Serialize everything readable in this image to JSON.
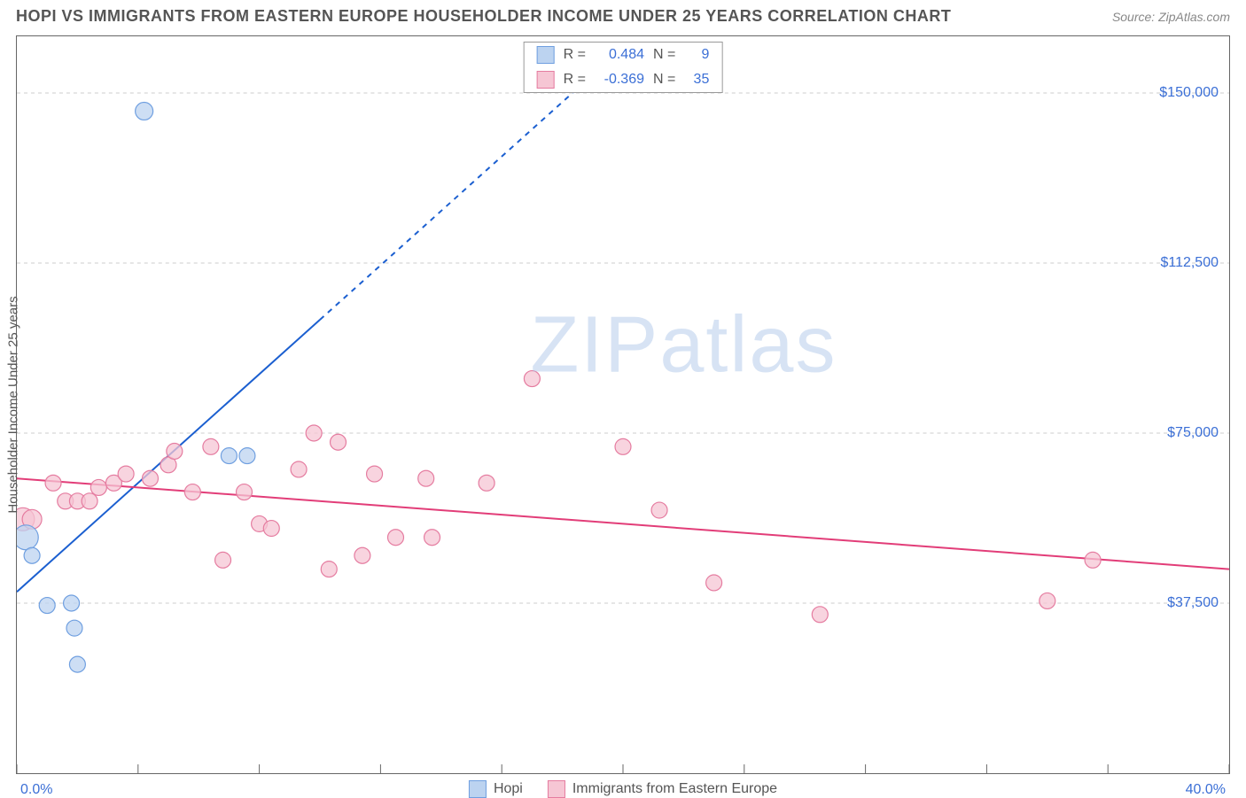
{
  "title": "HOPI VS IMMIGRANTS FROM EASTERN EUROPE HOUSEHOLDER INCOME UNDER 25 YEARS CORRELATION CHART",
  "source": "Source: ZipAtlas.com",
  "ylabel": "Householder Income Under 25 years",
  "watermark_a": "ZIP",
  "watermark_b": "atlas",
  "chart": {
    "type": "scatter",
    "xlim": [
      0,
      40
    ],
    "ylim": [
      0,
      162500
    ],
    "x_start_label": "0.0%",
    "x_end_label": "40.0%",
    "ytick_values": [
      37500,
      75000,
      112500,
      150000
    ],
    "ytick_labels": [
      "$37,500",
      "$75,000",
      "$112,500",
      "$150,000"
    ],
    "xtick_values": [
      0,
      4,
      8,
      12,
      16,
      20,
      24,
      28,
      32,
      36,
      40
    ],
    "background_color": "#ffffff",
    "grid_color": "#cccccc",
    "border_color": "#666666",
    "label_color": "#3b6fd6",
    "series": [
      {
        "name": "Hopi",
        "color_fill": "#bcd3f0",
        "color_stroke": "#6f9fe0",
        "r_value": "0.484",
        "n_value": "9",
        "trend": {
          "x1": 0,
          "y1": 40000,
          "x2": 10,
          "y2": 100000,
          "x2_dash": 20,
          "y2_dash": 160000,
          "stroke": "#1b5fd0",
          "width": 2
        },
        "points": [
          {
            "x": 0.3,
            "y": 52000,
            "r": 14
          },
          {
            "x": 0.5,
            "y": 48000,
            "r": 9
          },
          {
            "x": 1.0,
            "y": 37000,
            "r": 9
          },
          {
            "x": 1.8,
            "y": 37500,
            "r": 9
          },
          {
            "x": 1.9,
            "y": 32000,
            "r": 9
          },
          {
            "x": 2.0,
            "y": 24000,
            "r": 9
          },
          {
            "x": 4.2,
            "y": 146000,
            "r": 10
          },
          {
            "x": 7.0,
            "y": 70000,
            "r": 9
          },
          {
            "x": 7.6,
            "y": 70000,
            "r": 9
          }
        ]
      },
      {
        "name": "Immigrants from Eastern Europe",
        "color_fill": "#f6c6d4",
        "color_stroke": "#e57ca0",
        "r_value": "-0.369",
        "n_value": "35",
        "trend": {
          "x1": 0,
          "y1": 65000,
          "x2": 40,
          "y2": 45000,
          "stroke": "#e23d78",
          "width": 2
        },
        "points": [
          {
            "x": 0.2,
            "y": 56000,
            "r": 13
          },
          {
            "x": 0.5,
            "y": 56000,
            "r": 11
          },
          {
            "x": 1.2,
            "y": 64000,
            "r": 9
          },
          {
            "x": 1.6,
            "y": 60000,
            "r": 9
          },
          {
            "x": 2.0,
            "y": 60000,
            "r": 9
          },
          {
            "x": 2.4,
            "y": 60000,
            "r": 9
          },
          {
            "x": 2.7,
            "y": 63000,
            "r": 9
          },
          {
            "x": 3.2,
            "y": 64000,
            "r": 9
          },
          {
            "x": 3.6,
            "y": 66000,
            "r": 9
          },
          {
            "x": 4.4,
            "y": 65000,
            "r": 9
          },
          {
            "x": 5.0,
            "y": 68000,
            "r": 9
          },
          {
            "x": 5.2,
            "y": 71000,
            "r": 9
          },
          {
            "x": 5.8,
            "y": 62000,
            "r": 9
          },
          {
            "x": 6.4,
            "y": 72000,
            "r": 9
          },
          {
            "x": 6.8,
            "y": 47000,
            "r": 9
          },
          {
            "x": 7.5,
            "y": 62000,
            "r": 9
          },
          {
            "x": 8.0,
            "y": 55000,
            "r": 9
          },
          {
            "x": 8.4,
            "y": 54000,
            "r": 9
          },
          {
            "x": 9.3,
            "y": 67000,
            "r": 9
          },
          {
            "x": 9.8,
            "y": 75000,
            "r": 9
          },
          {
            "x": 10.3,
            "y": 45000,
            "r": 9
          },
          {
            "x": 10.6,
            "y": 73000,
            "r": 9
          },
          {
            "x": 11.4,
            "y": 48000,
            "r": 9
          },
          {
            "x": 11.8,
            "y": 66000,
            "r": 9
          },
          {
            "x": 12.5,
            "y": 52000,
            "r": 9
          },
          {
            "x": 13.5,
            "y": 65000,
            "r": 9
          },
          {
            "x": 13.7,
            "y": 52000,
            "r": 9
          },
          {
            "x": 15.5,
            "y": 64000,
            "r": 9
          },
          {
            "x": 17.0,
            "y": 87000,
            "r": 9
          },
          {
            "x": 20.0,
            "y": 72000,
            "r": 9
          },
          {
            "x": 21.2,
            "y": 58000,
            "r": 9
          },
          {
            "x": 23.0,
            "y": 42000,
            "r": 9
          },
          {
            "x": 26.5,
            "y": 35000,
            "r": 9
          },
          {
            "x": 34.0,
            "y": 38000,
            "r": 9
          },
          {
            "x": 35.5,
            "y": 47000,
            "r": 9
          }
        ]
      }
    ]
  },
  "legend": {
    "r_label": "R  =",
    "n_label": "N  ="
  }
}
